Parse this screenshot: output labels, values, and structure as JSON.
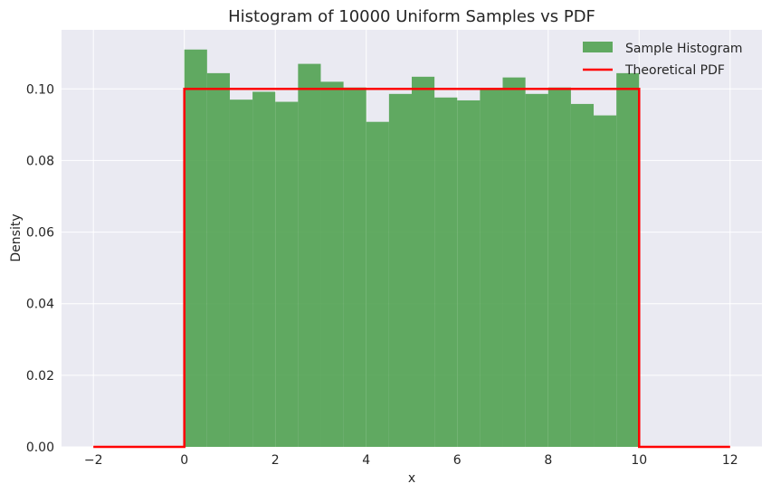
{
  "chart_data": {
    "type": "bar",
    "title": "Histogram of 10000 Uniform Samples vs PDF",
    "xlabel": "x",
    "ylabel": "Density",
    "xlim": [
      -2.7,
      12.7
    ],
    "ylim": [
      0,
      0.1165
    ],
    "xticks": [
      -2,
      0,
      2,
      4,
      6,
      8,
      10,
      12
    ],
    "xtick_labels": [
      "−2",
      "0",
      "2",
      "4",
      "6",
      "8",
      "10",
      "12"
    ],
    "yticks": [
      0,
      0.02,
      0.04,
      0.06,
      0.08,
      0.1
    ],
    "ytick_labels": [
      "0.00",
      "0.02",
      "0.04",
      "0.06",
      "0.08",
      "0.10"
    ],
    "grid": true,
    "legend_position": "top-right",
    "series": [
      {
        "name": "Sample Histogram",
        "kind": "histogram",
        "color": "#4c9f4c",
        "bin_edges": [
          0,
          0.5,
          1,
          1.5,
          2,
          2.5,
          3,
          3.5,
          4,
          4.5,
          5,
          5.5,
          6,
          6.5,
          7,
          7.5,
          8,
          8.5,
          9,
          9.5,
          10
        ],
        "values": [
          0.111,
          0.1044,
          0.097,
          0.0992,
          0.0964,
          0.107,
          0.102,
          0.1004,
          0.0908,
          0.0986,
          0.1034,
          0.0976,
          0.0968,
          0.1,
          0.1032,
          0.0986,
          0.1004,
          0.0958,
          0.0926,
          0.1044
        ]
      },
      {
        "name": "Theoretical PDF",
        "kind": "line",
        "color": "#ff0000",
        "x": [
          -2,
          0,
          0,
          10,
          10,
          12
        ],
        "y": [
          0,
          0,
          0.1,
          0.1,
          0,
          0
        ]
      }
    ]
  }
}
